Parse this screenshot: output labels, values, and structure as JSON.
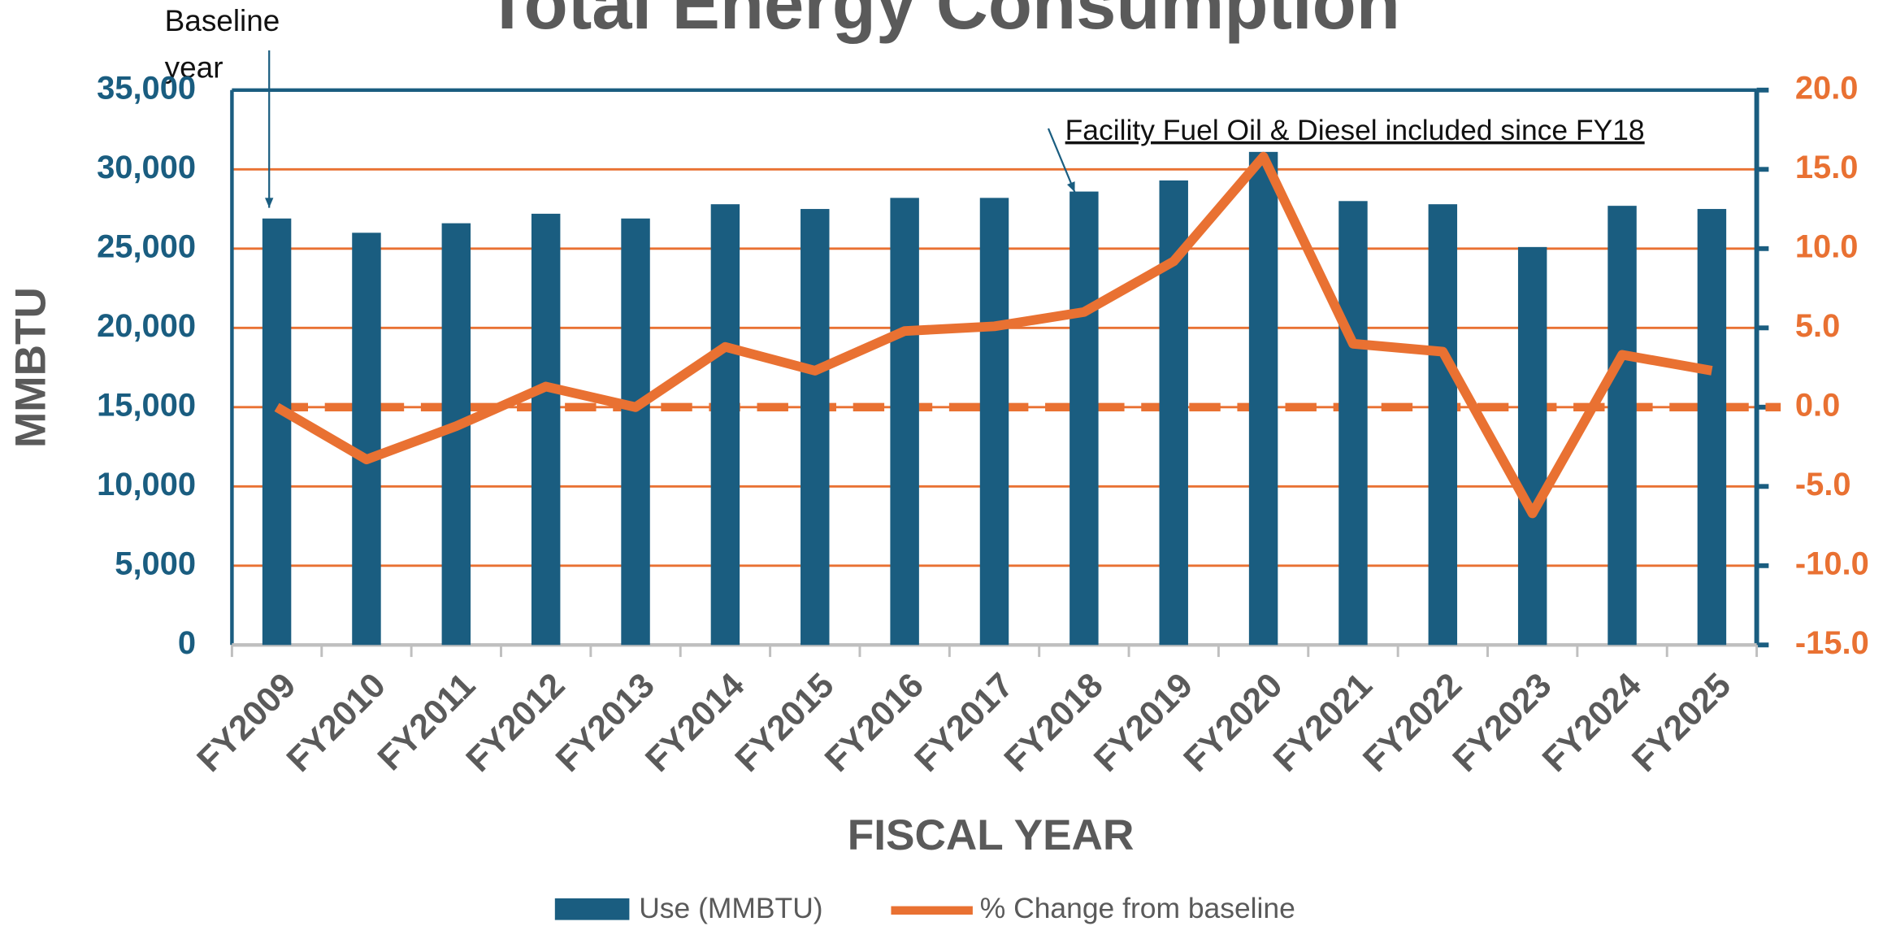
{
  "chart_data": {
    "type": "bar",
    "title": "Total Energy Consumption",
    "x_label": "FISCAL YEAR",
    "y_label": "MMBTU",
    "annotations": [
      "Baseline",
      "year",
      "Facility Fuel Oil & Diesel included since FY18"
    ],
    "categories": [
      "FY2009",
      "FY2010",
      "FY2011",
      "FY2012",
      "FY2013",
      "FY2014",
      "FY2015",
      "FY2016",
      "FY2017",
      "FY2018",
      "FY2019",
      "FY2020",
      "FY2021",
      "FY2022",
      "FY2023",
      "FY2024",
      "FY2025"
    ],
    "series": [
      {
        "name": "Use (MMBTU)",
        "color": "#1a5d80",
        "type": "bar",
        "values": [
          26900,
          26000,
          26600,
          27200,
          26900,
          27800,
          27500,
          28200,
          28200,
          28600,
          29300,
          31100,
          28000,
          27800,
          25100,
          27700,
          27500
        ]
      },
      {
        "name": "% Change from baseline",
        "color": "#e97132",
        "type": "line",
        "axis": "y2",
        "values": [
          0,
          -3.3,
          -1.2,
          1.3,
          0,
          3.8,
          2.3,
          4.8,
          5.1,
          6.0,
          9.2,
          15.8,
          4.0,
          3.5,
          -6.7,
          3.3,
          2.3
        ]
      }
    ],
    "ylim": [
      0,
      35000
    ],
    "yticks": [
      0,
      {
        "value": 5000,
        "label": "5,000"
      },
      {
        "value": 10000,
        "label": "10,000"
      },
      {
        "value": 15000,
        "label": "15,000"
      },
      {
        "value": 20000,
        "label": "20,000"
      },
      {
        "value": 25000,
        "label": "25,000"
      },
      {
        "value": 30000,
        "label": "30,000"
      },
      {
        "value": 35000,
        "label": "35,000"
      }
    ],
    "y2lim": [
      -15,
      20
    ],
    "y2ticks": [
      {
        "value": -15,
        "label": "-15.0"
      },
      {
        "value": -10,
        "label": "-10.0"
      },
      {
        "value": -5,
        "label": "-5.0"
      },
      {
        "value": 0,
        "label": "0.0"
      },
      {
        "value": 5,
        "label": "5.0"
      },
      {
        "value": 10,
        "label": "10.0"
      },
      {
        "value": 15,
        "label": "15.0"
      },
      {
        "value": 20,
        "label": "20.0"
      }
    ],
    "y2_reference_line": 0,
    "grid": true,
    "legend": "bottom"
  }
}
